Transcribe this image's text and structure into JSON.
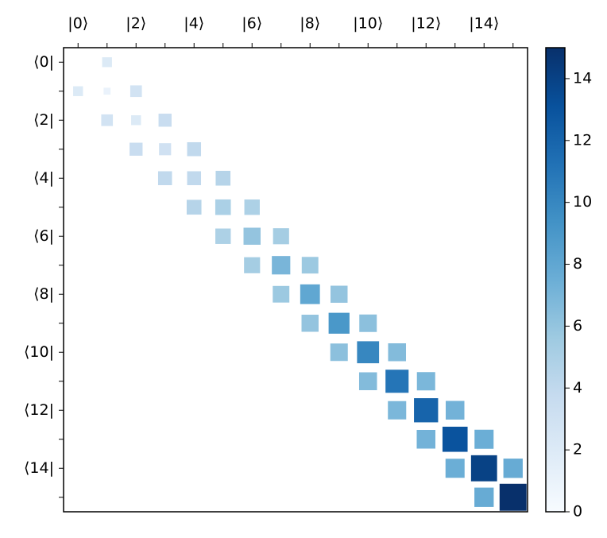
{
  "chart_data": {
    "type": "hinton",
    "xticklabels": [
      "|0⟩",
      null,
      "|2⟩",
      null,
      "|4⟩",
      null,
      "|6⟩",
      null,
      "|8⟩",
      null,
      "|10⟩",
      null,
      "|12⟩",
      null,
      "|14⟩",
      null
    ],
    "yticklabels": [
      "⟨0|",
      null,
      "⟨2|",
      null,
      "⟨4|",
      null,
      "⟨6|",
      null,
      "⟨8|",
      null,
      "⟨10|",
      null,
      "⟨12|",
      null,
      "⟨14|",
      null
    ],
    "values": [
      [
        0,
        2,
        0,
        0,
        0,
        0,
        0,
        0,
        0,
        0,
        0,
        0,
        0,
        0,
        0,
        0
      ],
      [
        2,
        1,
        2.8,
        0,
        0,
        0,
        0,
        0,
        0,
        0,
        0,
        0,
        0,
        0,
        0,
        0
      ],
      [
        0,
        2.8,
        2,
        3.5,
        0,
        0,
        0,
        0,
        0,
        0,
        0,
        0,
        0,
        0,
        0,
        0
      ],
      [
        0,
        0,
        3.5,
        3,
        4,
        0,
        0,
        0,
        0,
        0,
        0,
        0,
        0,
        0,
        0,
        0
      ],
      [
        0,
        0,
        0,
        4,
        4,
        4.5,
        0,
        0,
        0,
        0,
        0,
        0,
        0,
        0,
        0,
        0
      ],
      [
        0,
        0,
        0,
        0,
        4.5,
        5,
        4.9,
        0,
        0,
        0,
        0,
        0,
        0,
        0,
        0,
        0
      ],
      [
        0,
        0,
        0,
        0,
        0,
        4.9,
        6,
        5.3,
        0,
        0,
        0,
        0,
        0,
        0,
        0,
        0
      ],
      [
        0,
        0,
        0,
        0,
        0,
        0,
        5.3,
        7,
        5.7,
        0,
        0,
        0,
        0,
        0,
        0,
        0
      ],
      [
        0,
        0,
        0,
        0,
        0,
        0,
        0,
        5.7,
        8,
        6,
        0,
        0,
        0,
        0,
        0,
        0
      ],
      [
        0,
        0,
        0,
        0,
        0,
        0,
        0,
        0,
        6,
        9,
        6.3,
        0,
        0,
        0,
        0,
        0
      ],
      [
        0,
        0,
        0,
        0,
        0,
        0,
        0,
        0,
        0,
        6.3,
        10,
        6.6,
        0,
        0,
        0,
        0
      ],
      [
        0,
        0,
        0,
        0,
        0,
        0,
        0,
        0,
        0,
        0,
        6.6,
        11,
        6.9,
        0,
        0,
        0
      ],
      [
        0,
        0,
        0,
        0,
        0,
        0,
        0,
        0,
        0,
        0,
        0,
        6.9,
        12,
        7.2,
        0,
        0
      ],
      [
        0,
        0,
        0,
        0,
        0,
        0,
        0,
        0,
        0,
        0,
        0,
        0,
        7.2,
        13,
        7.5,
        0
      ],
      [
        0,
        0,
        0,
        0,
        0,
        0,
        0,
        0,
        0,
        0,
        0,
        0,
        0,
        7.5,
        14,
        7.7
      ],
      [
        0,
        0,
        0,
        0,
        0,
        0,
        0,
        0,
        0,
        0,
        0,
        0,
        0,
        0,
        7.7,
        15
      ]
    ],
    "colormap": [
      "#f7fbff",
      "#deebf7",
      "#c6dbef",
      "#9ecae1",
      "#6baed6",
      "#4292c6",
      "#2171b5",
      "#08519c",
      "#08306b"
    ],
    "clim": [
      0,
      15
    ],
    "cticks": [
      0,
      2,
      4,
      6,
      8,
      10,
      12,
      14
    ]
  }
}
